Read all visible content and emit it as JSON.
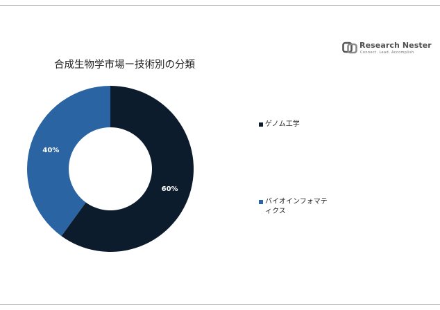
{
  "header": {
    "logo_name": "Research Nester",
    "logo_tagline": "Connect. Lead. Accomplish"
  },
  "chart_data": {
    "type": "pie",
    "variant": "donut",
    "title": "合成生物学市場ー技術別の分類",
    "legend_position": "right",
    "slices": [
      {
        "label": "ゲノム工学",
        "value": 60,
        "display": "60%",
        "color": "#0c1c2c"
      },
      {
        "label": "バイオインフォマティクス",
        "value": 40,
        "display": "40%",
        "color": "#2a64a2"
      }
    ]
  }
}
